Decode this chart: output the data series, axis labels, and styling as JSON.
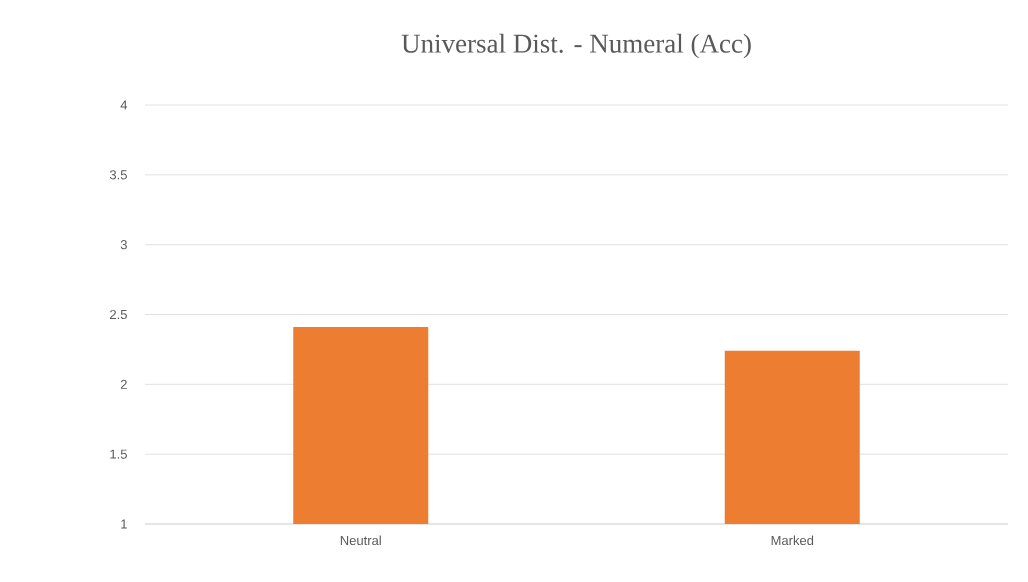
{
  "chart_data": {
    "type": "bar",
    "title": "Universal Dist. - Numeral (Acc)",
    "categories": [
      "Neutral",
      "Marked"
    ],
    "values": [
      2.41,
      2.24
    ],
    "color": "#ed7d31",
    "ylim": [
      1,
      4
    ],
    "yticks": [
      1,
      1.5,
      2,
      2.5,
      3,
      3.5,
      4
    ],
    "grid": "y"
  }
}
